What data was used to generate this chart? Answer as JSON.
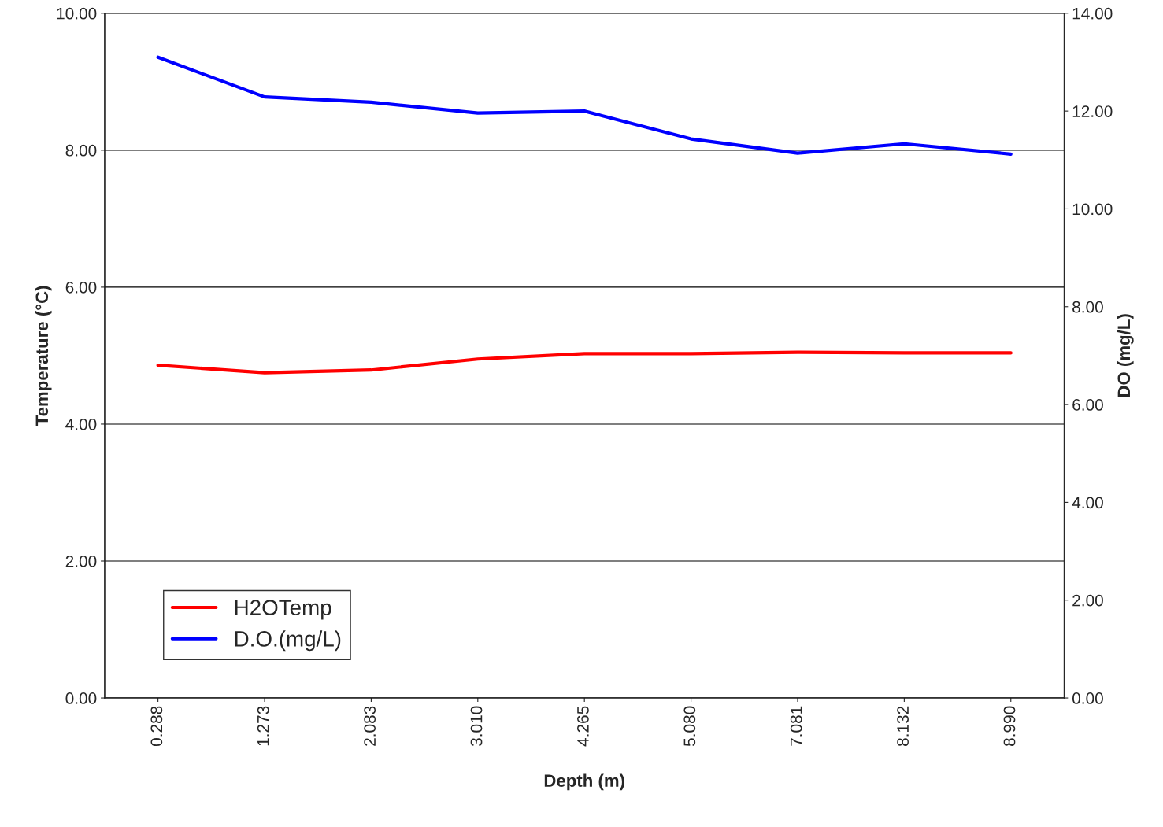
{
  "chart_data": {
    "type": "line",
    "xlabel": "Depth (m)",
    "ylabel": "Temperature (°C)",
    "y2label": "DO (mg/L)",
    "categories": [
      "0.288",
      "1.273",
      "2.083",
      "3.010",
      "4.265",
      "5.080",
      "7.081",
      "8.132",
      "8.990"
    ],
    "series": [
      {
        "name": "H2OTemp",
        "color": "#ff0000",
        "values": [
          4.86,
          4.75,
          4.79,
          4.95,
          5.03,
          5.03,
          5.05,
          5.04,
          5.04
        ]
      },
      {
        "name": "D.O.(mg/L)",
        "color": "#0000ff",
        "axis": "y2",
        "values": [
          13.1,
          12.29,
          12.18,
          11.96,
          12.0,
          11.43,
          11.14,
          11.33,
          11.12
        ]
      }
    ],
    "ylim": [
      0,
      10
    ],
    "yticks": [
      {
        "value": 0,
        "label": "0.00"
      },
      {
        "value": 2,
        "label": "2.00"
      },
      {
        "value": 4,
        "label": "4.00"
      },
      {
        "value": 6,
        "label": "6.00"
      },
      {
        "value": 8,
        "label": "8.00"
      },
      {
        "value": 10,
        "label": "10.00"
      }
    ],
    "y2lim": [
      0,
      14
    ],
    "y2ticks": [
      {
        "value": 0,
        "label": "0.00"
      },
      {
        "value": 2,
        "label": "2.00"
      },
      {
        "value": 4,
        "label": "4.00"
      },
      {
        "value": 6,
        "label": "6.00"
      },
      {
        "value": 8,
        "label": "8.00"
      },
      {
        "value": 10,
        "label": "10.00"
      },
      {
        "value": 12,
        "label": "12.00"
      },
      {
        "value": 14,
        "label": "14.00"
      }
    ],
    "grid": "y",
    "legend": "bottom left",
    "marker": "none",
    "line_style": "solid"
  }
}
